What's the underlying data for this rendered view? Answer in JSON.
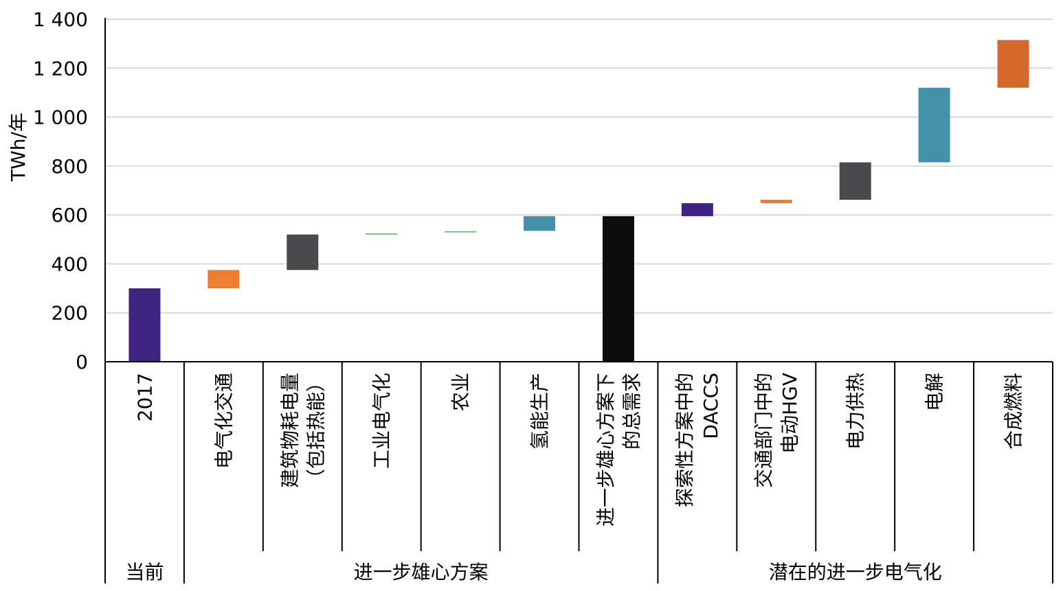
{
  "chart_data": {
    "type": "bar",
    "subtype": "waterfall",
    "ylabel": "TWh/年",
    "ylim": [
      0,
      1400
    ],
    "yticks": [
      0,
      200,
      400,
      600,
      800,
      1000,
      1200,
      1400
    ],
    "ytick_labels": [
      "0",
      "200",
      "400",
      "600",
      "800",
      "1 000",
      "1 200",
      "1 400"
    ],
    "grid": true,
    "categories": [
      "2017",
      "电气化交通",
      "建筑物耗电量（包括热能）",
      "工业电气化",
      "农业",
      "氢能生产",
      "进一步雄心方案下的总需求",
      "探索性方案中的DACCS",
      "交通部门中的电动HGV",
      "电力供热",
      "电解",
      "合成燃料"
    ],
    "category_lines": [
      [
        "2017"
      ],
      [
        "电气化交通"
      ],
      [
        "建筑物耗电量",
        "（包括热能）"
      ],
      [
        "工业电气化"
      ],
      [
        "农业"
      ],
      [
        "氢能生产"
      ],
      [
        "进一步雄心方案下",
        "的总需求"
      ],
      [
        "探索性方案中的",
        "DACCS"
      ],
      [
        "交通部门中的",
        "电动HGV"
      ],
      [
        "电力供热"
      ],
      [
        "电解"
      ],
      [
        "合成燃料"
      ]
    ],
    "bars": [
      {
        "start": 0,
        "end": 300,
        "color": "#3f2380"
      },
      {
        "start": 300,
        "end": 375,
        "color": "#ed7d31"
      },
      {
        "start": 375,
        "end": 520,
        "color": "#4a4a4c"
      },
      {
        "start": 520,
        "end": 525,
        "color": "#7bbf7b"
      },
      {
        "start": 530,
        "end": 534,
        "color": "#7bbf7b"
      },
      {
        "start": 535,
        "end": 595,
        "color": "#4391ab"
      },
      {
        "start": 0,
        "end": 595,
        "color": "#0d0d0d"
      },
      {
        "start": 595,
        "end": 648,
        "color": "#3f2380"
      },
      {
        "start": 648,
        "end": 662,
        "color": "#ed7d31"
      },
      {
        "start": 662,
        "end": 815,
        "color": "#4a4a4c"
      },
      {
        "start": 815,
        "end": 1120,
        "color": "#4391ab"
      },
      {
        "start": 1120,
        "end": 1315,
        "color": "#d4692c"
      }
    ],
    "groups": [
      {
        "label": "当前",
        "from": 0,
        "to": 0
      },
      {
        "label": "进一步雄心方案",
        "from": 1,
        "to": 6
      },
      {
        "label": "潜在的进一步电气化",
        "from": 7,
        "to": 11
      }
    ]
  }
}
